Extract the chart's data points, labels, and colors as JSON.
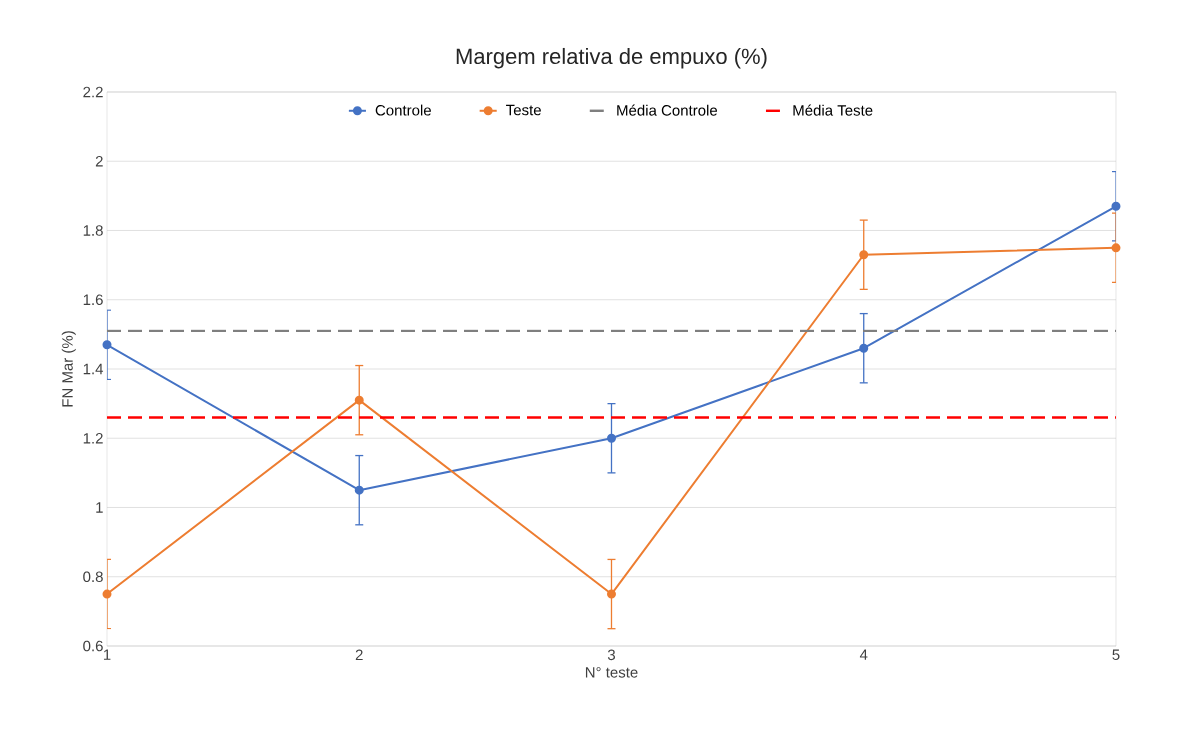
{
  "chart_data": {
    "type": "line",
    "title": "Margem relativa de empuxo (%)",
    "xlabel": "N° teste",
    "ylabel": "FN Mar (%)",
    "x": [
      1,
      2,
      3,
      4,
      5
    ],
    "series": [
      {
        "name": "Controle",
        "color": "#4472c4",
        "values": [
          1.47,
          1.05,
          1.2,
          1.46,
          1.87
        ],
        "errors": [
          0.1,
          0.1,
          0.1,
          0.1,
          0.1
        ],
        "marker": "circle"
      },
      {
        "name": "Teste",
        "color": "#ed7d31",
        "values": [
          0.75,
          1.31,
          0.75,
          1.73,
          1.75
        ],
        "errors": [
          0.1,
          0.1,
          0.1,
          0.1,
          0.1
        ],
        "marker": "circle"
      }
    ],
    "ref_lines": [
      {
        "axis": "y",
        "value": 1.51,
        "label": "Média Controle",
        "color": "#7f7f7f",
        "line_style": "dashed"
      },
      {
        "axis": "y",
        "value": 1.26,
        "label": "Média Teste",
        "color": "#ff0000",
        "line_style": "dashed"
      }
    ],
    "xlim": [
      1,
      5
    ],
    "xticks": [
      1,
      2,
      3,
      4,
      5
    ],
    "ylim": [
      0.6,
      2.2
    ],
    "yticks": [
      0.6,
      0.8,
      1,
      1.2,
      1.4,
      1.6,
      1.8,
      2,
      2.2
    ],
    "grid": "y",
    "legend": "top"
  }
}
